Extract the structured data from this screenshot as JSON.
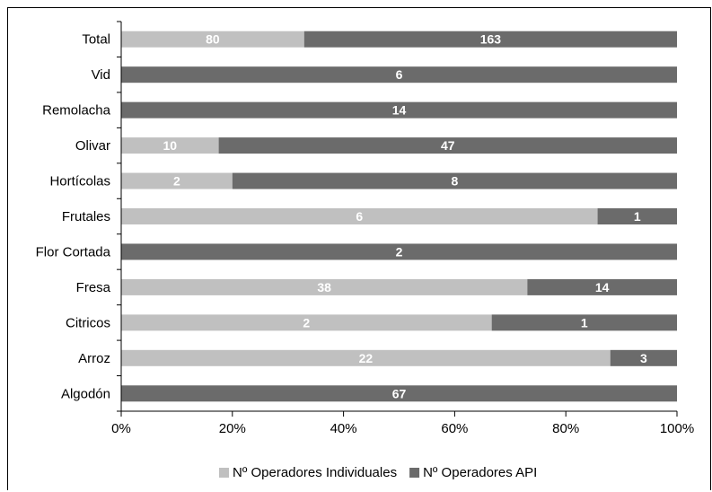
{
  "chart_data": {
    "type": "bar",
    "orientation": "horizontal",
    "stacked": "percent",
    "categories": [
      "Total",
      "Vid",
      "Remolacha",
      "Olivar",
      "Hortícolas",
      "Frutales",
      "Flor Cortada",
      "Fresa",
      "Citricos",
      "Arroz",
      "Algodón"
    ],
    "series": [
      {
        "name": "Nº Operadores Individuales",
        "color": "#c0c0c0",
        "values": [
          80,
          0,
          0,
          10,
          2,
          6,
          0,
          38,
          2,
          22,
          0
        ]
      },
      {
        "name": "Nº Operadores API",
        "color": "#6b6b6b",
        "values": [
          163,
          6,
          14,
          47,
          8,
          1,
          2,
          14,
          1,
          3,
          67
        ]
      }
    ],
    "xlim": [
      0,
      100
    ],
    "x_ticks": [
      "0%",
      "20%",
      "40%",
      "60%",
      "80%",
      "100%"
    ],
    "grid": false,
    "legend_position": "bottom"
  }
}
